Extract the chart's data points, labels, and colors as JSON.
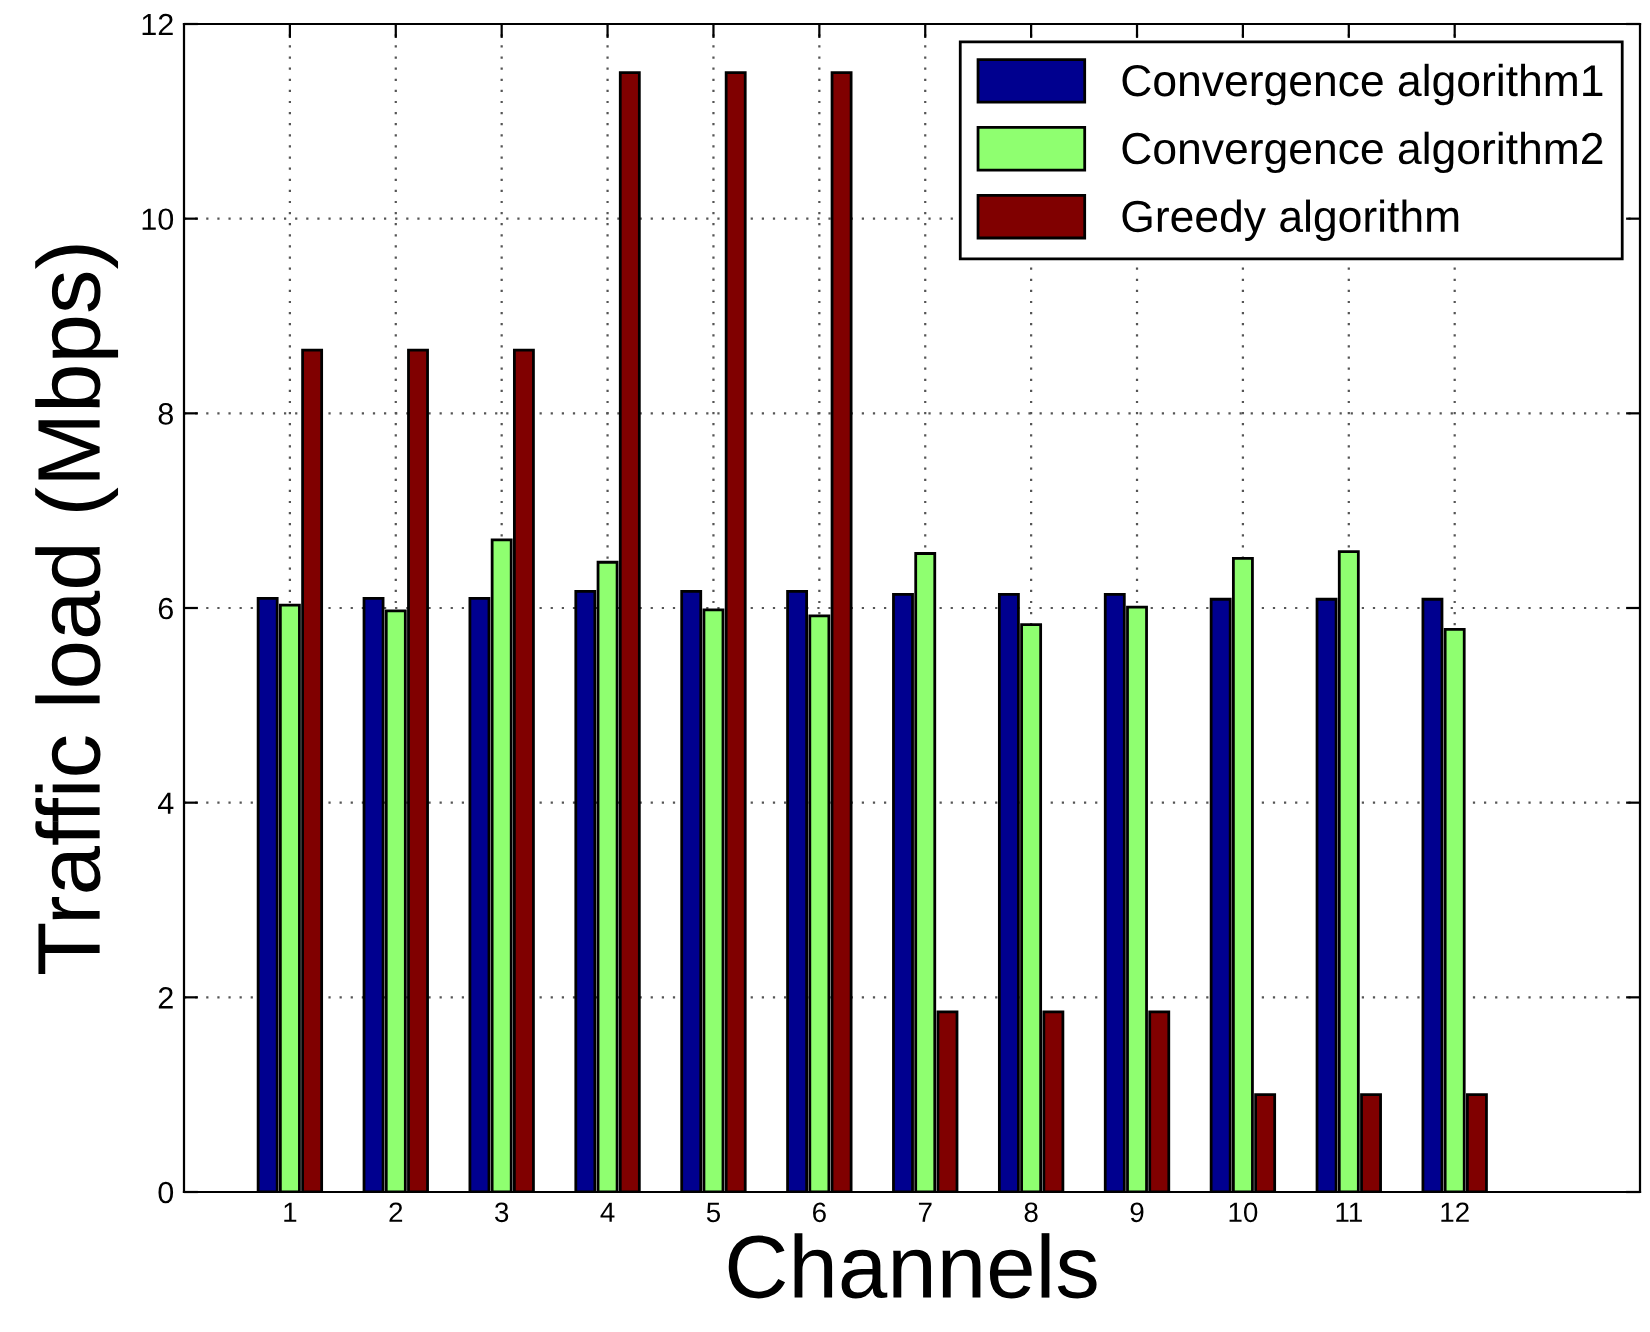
{
  "chart_data": {
    "type": "bar",
    "xlabel": "Channels",
    "ylabel": "Traffic load (Mbps)",
    "x": [
      1,
      2,
      3,
      4,
      5,
      6,
      7,
      8,
      9,
      10,
      11,
      12
    ],
    "series": [
      {
        "name": "Convergence algorithm1",
        "color": "#00008f",
        "values": [
          6.1,
          6.1,
          6.1,
          6.17,
          6.17,
          6.17,
          6.14,
          6.14,
          6.14,
          6.09,
          6.09,
          6.09
        ]
      },
      {
        "name": "Convergence algorithm2",
        "color": "#8fff70",
        "values": [
          6.03,
          5.97,
          6.7,
          6.47,
          5.98,
          5.92,
          6.56,
          5.83,
          6.01,
          6.51,
          6.58,
          5.78
        ]
      },
      {
        "name": "Greedy algorithm",
        "color": "#800000",
        "values": [
          8.65,
          8.65,
          8.65,
          11.5,
          11.5,
          11.5,
          1.85,
          1.85,
          1.85,
          1.0,
          1.0,
          1.0
        ]
      }
    ],
    "xlim": [
      0,
      13.75
    ],
    "xticks": [
      1,
      2,
      3,
      4,
      5,
      6,
      7,
      8,
      9,
      10,
      11,
      12
    ],
    "ylim": [
      0,
      12
    ],
    "yticks": [
      0,
      2,
      4,
      6,
      8,
      10,
      12
    ],
    "grid": true,
    "legend": "top right"
  }
}
